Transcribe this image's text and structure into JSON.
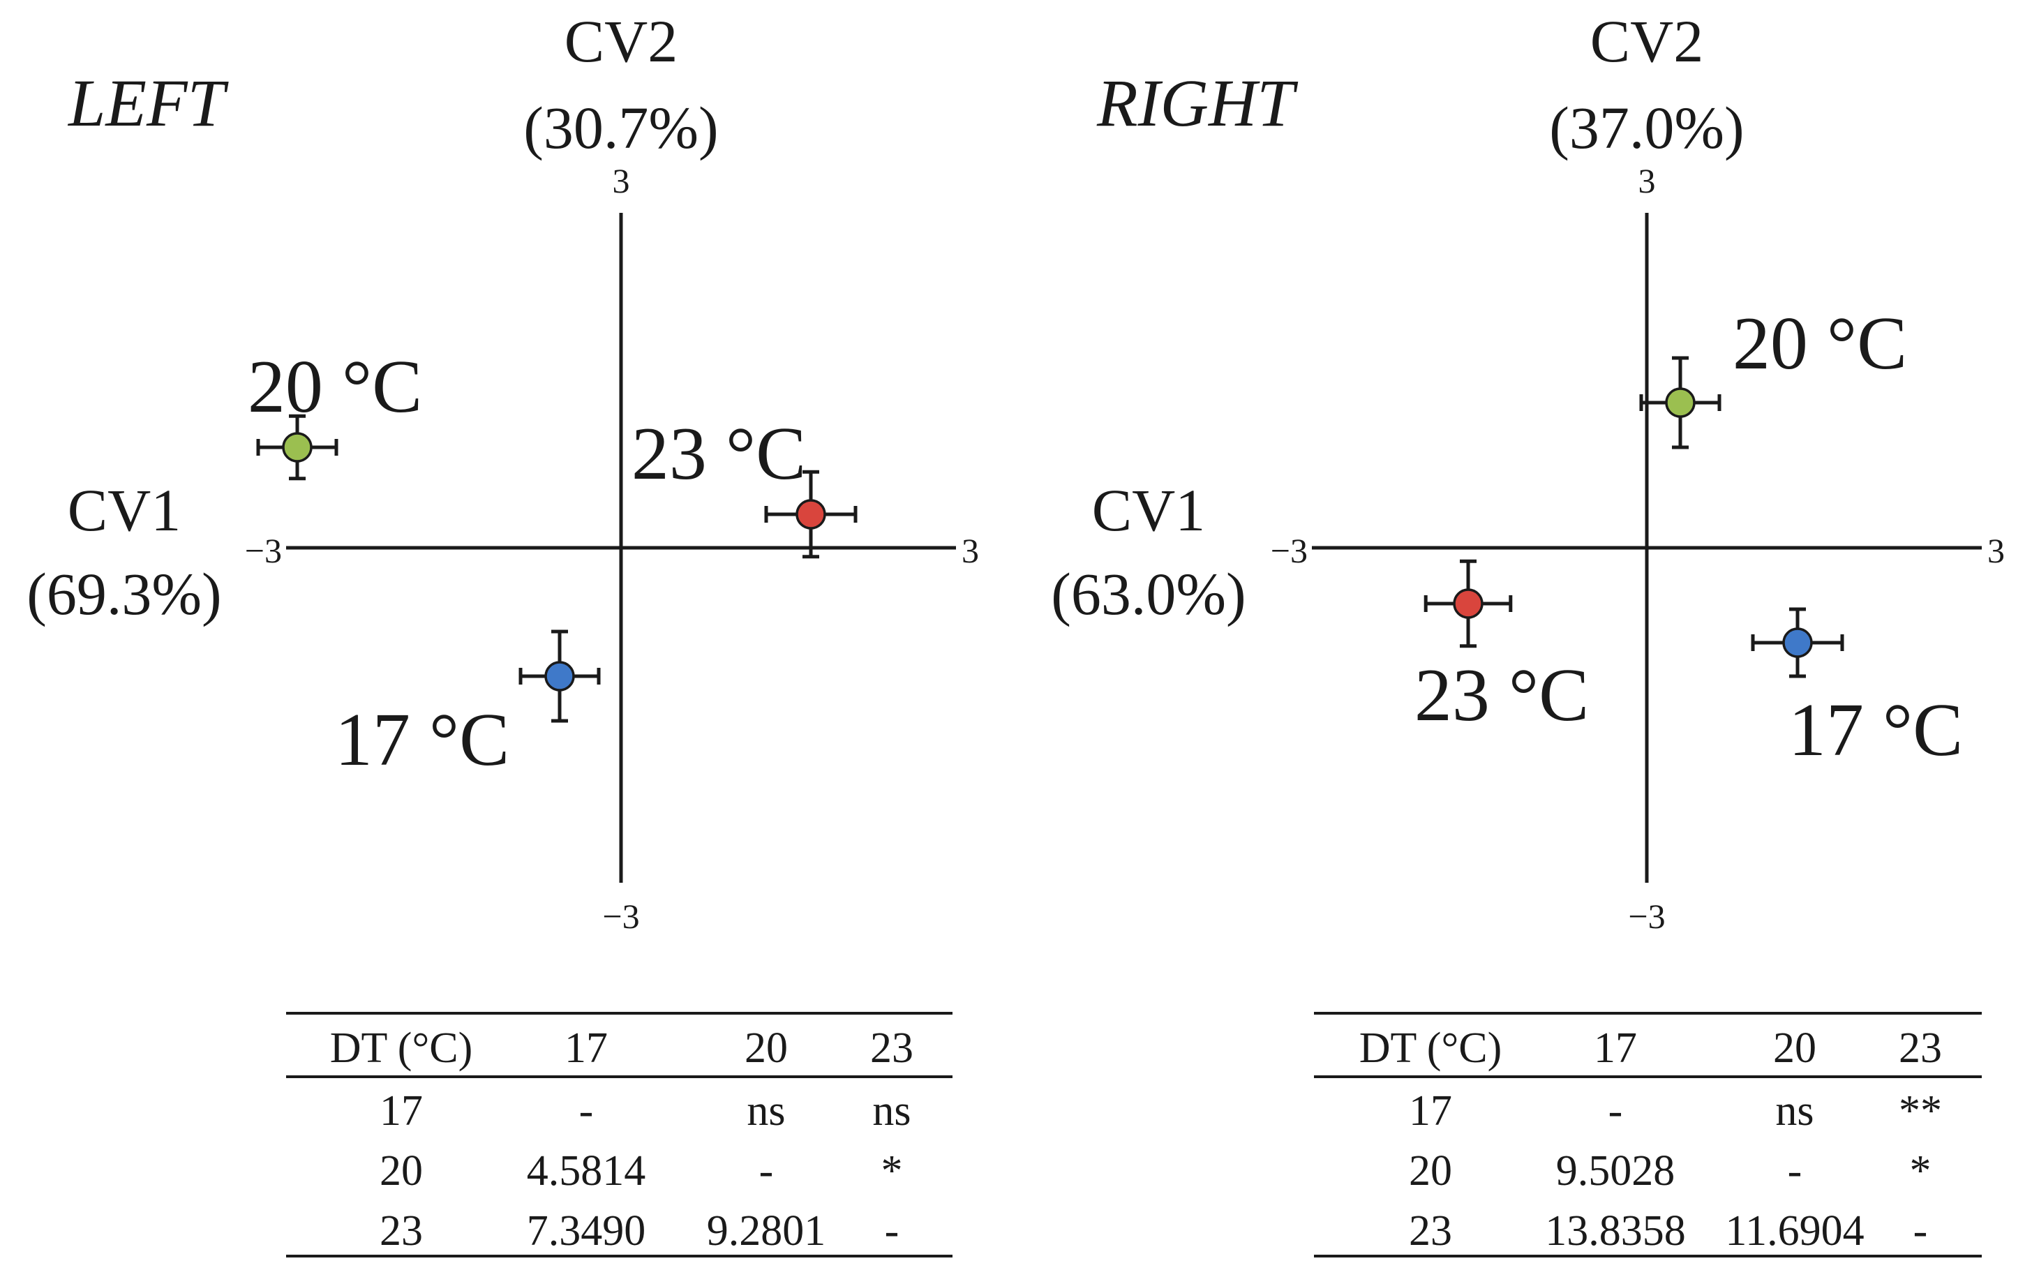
{
  "chart_data": [
    {
      "type": "scatter",
      "title": "LEFT",
      "xlabel": "CV1",
      "xlabel_pct": "(69.3%)",
      "ylabel": "CV2",
      "ylabel_pct": "(30.7%)",
      "xlim": [
        -3,
        3
      ],
      "ylim": [
        -3,
        3
      ],
      "ticks": {
        "x_min": "−3",
        "x_max": "3",
        "y_min": "−3",
        "y_max": "3"
      },
      "points": [
        {
          "label": "20 °C",
          "x": -2.9,
          "y": 0.9,
          "xerr": 0.35,
          "yerr": 0.28,
          "color": "#9bbf50"
        },
        {
          "label": "23 °C",
          "x": 1.7,
          "y": 0.3,
          "xerr": 0.4,
          "yerr": 0.38,
          "color": "#d9453d"
        },
        {
          "label": "17 °C",
          "x": -0.55,
          "y": -1.15,
          "xerr": 0.35,
          "yerr": 0.4,
          "color": "#3f79c9"
        }
      ],
      "table": {
        "headers": [
          "DT (°C)",
          "17",
          "20",
          "23"
        ],
        "rows": [
          [
            "17",
            "-",
            "ns",
            "ns"
          ],
          [
            "20",
            "4.5814",
            "-",
            "*"
          ],
          [
            "23",
            "7.3490",
            "9.2801",
            "-"
          ]
        ]
      }
    },
    {
      "type": "scatter",
      "title": "RIGHT",
      "xlabel": "CV1",
      "xlabel_pct": "(63.0%)",
      "ylabel": "CV2",
      "ylabel_pct": "(37.0%)",
      "xlim": [
        -3,
        3
      ],
      "ylim": [
        -3,
        3
      ],
      "ticks": {
        "x_min": "−3",
        "x_max": "3",
        "y_min": "−3",
        "y_max": "3"
      },
      "points": [
        {
          "label": "20 °C",
          "x": 0.3,
          "y": 1.3,
          "xerr": 0.35,
          "yerr": 0.4,
          "color": "#9bbf50"
        },
        {
          "label": "23 °C",
          "x": -1.6,
          "y": -0.5,
          "xerr": 0.38,
          "yerr": 0.38,
          "color": "#d9453d"
        },
        {
          "label": "17 °C",
          "x": 1.35,
          "y": -0.85,
          "xerr": 0.4,
          "yerr": 0.3,
          "color": "#3f79c9"
        }
      ],
      "table": {
        "headers": [
          "DT (°C)",
          "17",
          "20",
          "23"
        ],
        "rows": [
          [
            "17",
            "-",
            "ns",
            "**"
          ],
          [
            "20",
            "9.5028",
            "-",
            "*"
          ],
          [
            "23",
            "13.8358",
            "11.6904",
            "-"
          ]
        ]
      }
    }
  ]
}
